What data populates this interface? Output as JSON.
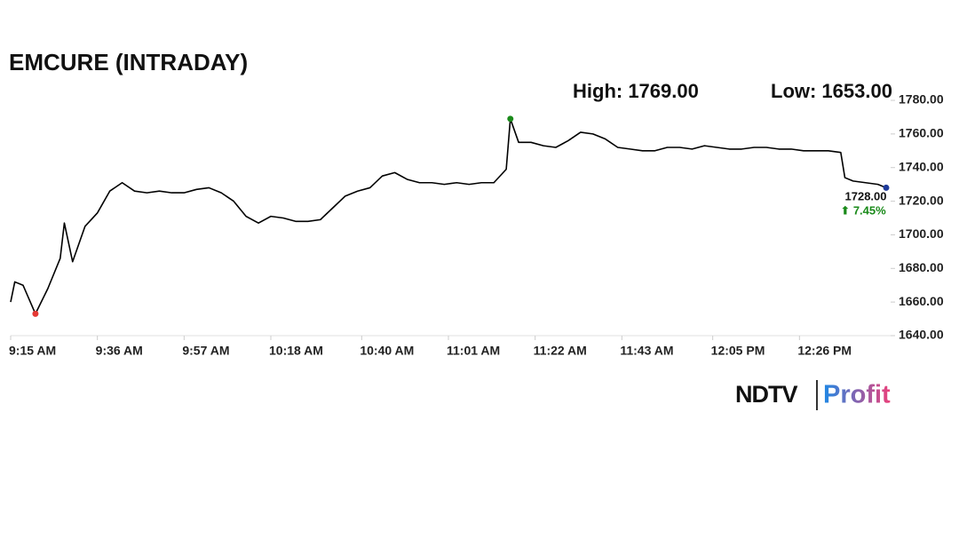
{
  "chart_data": {
    "type": "line",
    "title": "EMCURE (INTRADAY)",
    "high": {
      "value": 1769,
      "label": "High: 1769.00"
    },
    "low": {
      "value": 1653,
      "label": "Low: 1653.00"
    },
    "last_price": {
      "value": 1728,
      "label": "1728.00"
    },
    "change": "⬆ 7.45%",
    "brand": [
      "NDTV",
      "Profit"
    ],
    "x": [
      "9:15 AM",
      "9:16 AM",
      "9:18 AM",
      "9:21 AM",
      "9:24 AM",
      "9:27 AM",
      "9:28 AM",
      "9:30 AM",
      "9:33 AM",
      "9:36 AM",
      "9:39 AM",
      "9:42 AM",
      "9:45 AM",
      "9:48 AM",
      "9:51 AM",
      "9:54 AM",
      "9:57 AM",
      "10:00 AM",
      "10:03 AM",
      "10:06 AM",
      "10:09 AM",
      "10:12 AM",
      "10:15 AM",
      "10:18 AM",
      "10:21 AM",
      "10:24 AM",
      "10:27 AM",
      "10:30 AM",
      "10:33 AM",
      "10:36 AM",
      "10:39 AM",
      "10:42 AM",
      "10:45 AM",
      "10:48 AM",
      "10:51 AM",
      "10:54 AM",
      "10:57 AM",
      "11:00 AM",
      "11:03 AM",
      "11:06 AM",
      "11:09 AM",
      "11:12 AM",
      "11:15 AM",
      "11:16 AM",
      "11:18 AM",
      "11:21 AM",
      "11:24 AM",
      "11:27 AM",
      "11:30 AM",
      "11:33 AM",
      "11:36 AM",
      "11:39 AM",
      "11:42 AM",
      "11:45 AM",
      "11:48 AM",
      "11:51 AM",
      "11:54 AM",
      "11:57 AM",
      "12:00 PM",
      "12:03 PM",
      "12:06 PM",
      "12:09 PM",
      "12:12 PM",
      "12:15 PM",
      "12:18 PM",
      "12:21 PM",
      "12:24 PM",
      "12:27 PM",
      "12:30 PM",
      "12:33 PM",
      "12:36 PM",
      "12:37 PM",
      "12:39 PM",
      "12:42 PM",
      "12:45 PM",
      "12:47 PM"
    ],
    "series": [
      {
        "name": "EMCURE",
        "color": "#000000",
        "values": [
          1660,
          1672,
          1670,
          1653,
          1668,
          1686,
          1707,
          1684,
          1705,
          1713,
          1726,
          1731,
          1726,
          1725,
          1726,
          1725,
          1725,
          1727,
          1728,
          1725,
          1720,
          1711,
          1707,
          1711,
          1710,
          1708,
          1708,
          1709,
          1716,
          1723,
          1726,
          1728,
          1735,
          1737,
          1733,
          1731,
          1731,
          1730,
          1731,
          1730,
          1731,
          1731,
          1739,
          1769,
          1755,
          1755,
          1753,
          1752,
          1756,
          1761,
          1760,
          1757,
          1752,
          1751,
          1750,
          1750,
          1752,
          1752,
          1751,
          1753,
          1752,
          1751,
          1751,
          1752,
          1752,
          1751,
          1751,
          1750,
          1750,
          1750,
          1749,
          1734,
          1732,
          1731,
          1730,
          1728
        ]
      }
    ],
    "xlim": [
      "9:15 AM",
      "12:47 PM"
    ],
    "xticks": [
      "9:15 AM",
      "9:36 AM",
      "9:57 AM",
      "10:18 AM",
      "10:40 AM",
      "11:01 AM",
      "11:22 AM",
      "11:43 AM",
      "12:05 PM",
      "12:26 PM"
    ],
    "ylim": [
      1640,
      1780
    ],
    "yticks": [
      {
        "value": 1640,
        "label": "1640.00"
      },
      {
        "value": 1660,
        "label": "1660.00"
      },
      {
        "value": 1680,
        "label": "1680.00"
      },
      {
        "value": 1700,
        "label": "1700.00"
      },
      {
        "value": 1720,
        "label": "1720.00"
      },
      {
        "value": 1740,
        "label": "1740.00"
      },
      {
        "value": 1760,
        "label": "1760.00"
      },
      {
        "value": 1780,
        "label": "1780.00"
      }
    ],
    "grid": false
  }
}
